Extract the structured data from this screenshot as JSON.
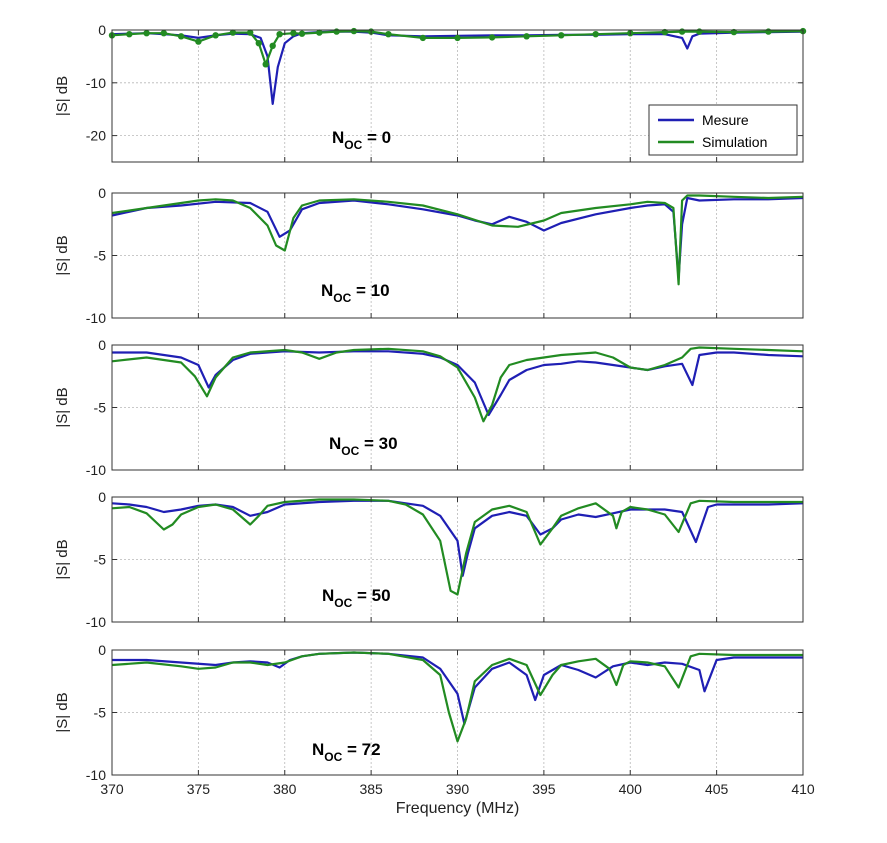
{
  "chart_data": {
    "type": "line",
    "shared_x": {
      "label": "Frequency (MHz)",
      "xlim": [
        370,
        410
      ],
      "ticks": [
        370,
        375,
        380,
        385,
        390,
        395,
        400,
        405,
        410
      ],
      "tick_labels": [
        "370",
        "375",
        "380",
        "385",
        "390",
        "395",
        "400",
        "405",
        "410"
      ]
    },
    "colors": {
      "Mesure": "#1f1fb4",
      "Simulation": "#228b22"
    },
    "grid": true,
    "legend": {
      "placement": "bottom-right of first panel",
      "entries": [
        "Mesure",
        "Simulation"
      ]
    },
    "panels": [
      {
        "annotation_main": "N",
        "annotation_sub": "OC",
        "annotation_value": " = 0",
        "ylabel": "|S| dB",
        "ylim": [
          -25,
          0
        ],
        "yticks": [
          0,
          -10,
          -20
        ],
        "ytick_labels": [
          "0",
          "-10",
          "-20"
        ],
        "series": [
          {
            "name": "Mesure",
            "x": [
              370,
              371,
              372,
              373,
              374,
              375,
              376,
              377,
              378,
              378.6,
              379,
              379.3,
              379.6,
              380,
              380.5,
              381,
              382,
              383,
              384,
              385,
              386,
              388,
              390,
              392,
              394,
              396,
              398,
              400,
              402,
              403,
              403.3,
              403.6,
              404,
              406,
              408,
              410
            ],
            "y": [
              -0.8,
              -0.7,
              -0.6,
              -0.8,
              -1.0,
              -1.5,
              -1.0,
              -0.7,
              -0.8,
              -1.5,
              -5.0,
              -14.0,
              -7.0,
              -2.5,
              -1.2,
              -0.6,
              -0.4,
              -0.3,
              -0.3,
              -0.5,
              -1.0,
              -1.2,
              -1.1,
              -1.0,
              -1.0,
              -0.9,
              -0.9,
              -0.8,
              -0.8,
              -1.5,
              -3.5,
              -1.2,
              -0.7,
              -0.5,
              -0.4,
              -0.3
            ]
          },
          {
            "name": "Simulation",
            "x": [
              370,
              371,
              372,
              373,
              374,
              375,
              376,
              377,
              378,
              378.5,
              378.9,
              379.3,
              379.7,
              380.5,
              381,
              382,
              383,
              384,
              385,
              386,
              388,
              390,
              392,
              394,
              396,
              398,
              400,
              402,
              403,
              404,
              406,
              408,
              410
            ],
            "y": [
              -1.0,
              -0.8,
              -0.6,
              -0.6,
              -1.2,
              -2.2,
              -1.0,
              -0.5,
              -0.5,
              -2.5,
              -6.5,
              -3.0,
              -0.8,
              -0.6,
              -0.7,
              -0.5,
              -0.3,
              -0.2,
              -0.3,
              -0.8,
              -1.5,
              -1.5,
              -1.4,
              -1.2,
              -1.0,
              -0.8,
              -0.6,
              -0.4,
              -0.3,
              -0.3,
              -0.4,
              -0.3,
              -0.2
            ]
          }
        ]
      },
      {
        "annotation_main": "N",
        "annotation_sub": "OC",
        "annotation_value": " = 10",
        "ylabel": "|S| dB",
        "ylim": [
          -10,
          0
        ],
        "yticks": [
          0,
          -5,
          -10
        ],
        "ytick_labels": [
          "0",
          "-5",
          "-10"
        ],
        "series": [
          {
            "name": "Mesure",
            "x": [
              370,
              372,
              374,
              376,
              378,
              379,
              379.7,
              380.3,
              381,
              382,
              384,
              386,
              388,
              390,
              391,
              392,
              393,
              394,
              395,
              396,
              398,
              400,
              401,
              402,
              402.5,
              402.8,
              403,
              403.3,
              404,
              406,
              408,
              410
            ],
            "y": [
              -1.8,
              -1.2,
              -1.0,
              -0.7,
              -0.8,
              -1.5,
              -3.5,
              -3.0,
              -1.3,
              -0.8,
              -0.6,
              -0.9,
              -1.3,
              -1.8,
              -2.2,
              -2.5,
              -1.9,
              -2.3,
              -3.0,
              -2.4,
              -1.7,
              -1.2,
              -1.0,
              -0.9,
              -1.5,
              -6.8,
              -2.5,
              -0.4,
              -0.6,
              -0.5,
              -0.5,
              -0.4
            ]
          },
          {
            "name": "Simulation",
            "x": [
              370,
              372,
              374,
              375,
              376,
              377,
              378,
              379,
              379.5,
              380,
              380.5,
              381,
              382,
              384,
              386,
              388,
              390,
              392,
              393.5,
              395,
              396,
              398,
              400,
              401,
              402,
              402.5,
              402.8,
              403,
              403.3,
              404,
              406,
              408,
              410
            ],
            "y": [
              -1.6,
              -1.2,
              -0.8,
              -0.6,
              -0.5,
              -0.6,
              -1.2,
              -2.6,
              -4.2,
              -4.6,
              -2.0,
              -1.0,
              -0.6,
              -0.5,
              -0.7,
              -1.0,
              -1.7,
              -2.6,
              -2.7,
              -2.2,
              -1.6,
              -1.2,
              -0.9,
              -0.7,
              -0.8,
              -1.2,
              -7.3,
              -0.6,
              -0.2,
              -0.2,
              -0.3,
              -0.4,
              -0.3
            ]
          }
        ]
      },
      {
        "annotation_main": "N",
        "annotation_sub": "OC",
        "annotation_value": " = 30",
        "ylabel": "|S| dB",
        "ylim": [
          -10,
          0
        ],
        "yticks": [
          0,
          -5,
          -10
        ],
        "ytick_labels": [
          "0",
          "-5",
          "-10"
        ],
        "series": [
          {
            "name": "Mesure",
            "x": [
              370,
              372,
              374,
              375,
              375.6,
              376,
              377,
              378,
              380,
              382,
              384,
              386,
              388,
              389,
              390,
              391,
              391.8,
              392.5,
              393,
              394,
              395,
              396,
              397,
              398,
              400,
              401,
              402,
              403,
              403.6,
              404,
              405,
              406,
              408,
              410
            ],
            "y": [
              -0.6,
              -0.6,
              -1.0,
              -1.6,
              -3.4,
              -2.4,
              -1.2,
              -0.7,
              -0.5,
              -0.6,
              -0.5,
              -0.5,
              -0.7,
              -1.0,
              -1.6,
              -3.0,
              -5.6,
              -4.0,
              -2.8,
              -2.0,
              -1.6,
              -1.5,
              -1.3,
              -1.4,
              -1.8,
              -2.0,
              -1.7,
              -1.5,
              -3.2,
              -0.8,
              -0.6,
              -0.6,
              -0.8,
              -0.9
            ]
          },
          {
            "name": "Simulation",
            "x": [
              370,
              372,
              374,
              374.8,
              375.5,
              376,
              377,
              378,
              380,
              381,
              382,
              383,
              384,
              386,
              388,
              389,
              390,
              391,
              391.5,
              392,
              392.5,
              393,
              394,
              396,
              398,
              399,
              400,
              401,
              402,
              403,
              403.5,
              404,
              406,
              408,
              410
            ],
            "y": [
              -1.3,
              -1.0,
              -1.4,
              -2.5,
              -4.1,
              -2.6,
              -1.0,
              -0.6,
              -0.4,
              -0.6,
              -1.1,
              -0.6,
              -0.4,
              -0.3,
              -0.5,
              -0.9,
              -1.8,
              -4.2,
              -6.1,
              -4.8,
              -2.6,
              -1.6,
              -1.2,
              -0.8,
              -0.6,
              -1.0,
              -1.8,
              -2.0,
              -1.6,
              -1.0,
              -0.3,
              -0.2,
              -0.3,
              -0.4,
              -0.5
            ]
          }
        ]
      },
      {
        "annotation_main": "N",
        "annotation_sub": "OC",
        "annotation_value": " = 50",
        "ylabel": "|S| dB",
        "ylim": [
          -10,
          0
        ],
        "yticks": [
          0,
          -5,
          -10
        ],
        "ytick_labels": [
          "0",
          "-5",
          "-10"
        ],
        "series": [
          {
            "name": "Mesure",
            "x": [
              370,
              371,
              372,
              373,
              374,
              375,
              376,
              377,
              378,
              379,
              380,
              382,
              384,
              386,
              388,
              389,
              390,
              390.3,
              390.6,
              391,
              392,
              393,
              394,
              394.8,
              395.5,
              396,
              397,
              398,
              399,
              400,
              401,
              402,
              403,
              403.8,
              404.5,
              405,
              406,
              408,
              410
            ],
            "y": [
              -0.5,
              -0.6,
              -0.8,
              -1.2,
              -1.0,
              -0.7,
              -0.6,
              -0.8,
              -1.5,
              -1.2,
              -0.6,
              -0.4,
              -0.3,
              -0.3,
              -0.7,
              -1.5,
              -3.5,
              -6.3,
              -4.5,
              -2.5,
              -1.5,
              -1.2,
              -1.5,
              -3.0,
              -2.5,
              -1.8,
              -1.4,
              -1.6,
              -1.3,
              -1.0,
              -1.0,
              -1.0,
              -1.2,
              -3.6,
              -0.8,
              -0.6,
              -0.6,
              -0.6,
              -0.5
            ]
          },
          {
            "name": "Simulation",
            "x": [
              370,
              371,
              372,
              373,
              373.5,
              374,
              375,
              376,
              377,
              378,
              378.5,
              379,
              380,
              382,
              384,
              386,
              387,
              388,
              389,
              389.6,
              390,
              390.5,
              391,
              392,
              393,
              394,
              394.8,
              395.5,
              396,
              397,
              398,
              399,
              399.2,
              399.5,
              400,
              401,
              402,
              402.8,
              403.5,
              404,
              406,
              408,
              410
            ],
            "y": [
              -0.9,
              -0.8,
              -1.3,
              -2.6,
              -2.2,
              -1.4,
              -0.8,
              -0.6,
              -1.0,
              -2.2,
              -1.5,
              -0.7,
              -0.4,
              -0.2,
              -0.2,
              -0.3,
              -0.6,
              -1.4,
              -3.5,
              -7.5,
              -7.8,
              -4.5,
              -2.0,
              -1.0,
              -0.7,
              -1.2,
              -3.8,
              -2.5,
              -1.5,
              -0.9,
              -0.5,
              -1.5,
              -2.5,
              -1.2,
              -0.8,
              -1.0,
              -1.4,
              -2.8,
              -0.5,
              -0.3,
              -0.4,
              -0.4,
              -0.4
            ]
          }
        ]
      },
      {
        "annotation_main": "N",
        "annotation_sub": "OC",
        "annotation_value": " = 72",
        "ylabel": "|S| dB",
        "ylim": [
          -10,
          0
        ],
        "yticks": [
          0,
          -5,
          -10
        ],
        "ytick_labels": [
          "0",
          "-5",
          "-10"
        ],
        "series": [
          {
            "name": "Mesure",
            "x": [
              370,
              372,
              374,
              376,
              377,
              378,
              379,
              379.7,
              380.3,
              381,
              382,
              384,
              386,
              388,
              389,
              390,
              390.4,
              391,
              392,
              393,
              394,
              394.5,
              395,
              396,
              397,
              398,
              399,
              400,
              401,
              402,
              403,
              404,
              404.3,
              405,
              406,
              408,
              410
            ],
            "y": [
              -0.8,
              -0.8,
              -1.0,
              -1.2,
              -1.0,
              -0.9,
              -1.0,
              -1.4,
              -0.8,
              -0.5,
              -0.3,
              -0.2,
              -0.3,
              -0.6,
              -1.5,
              -3.5,
              -5.9,
              -3.0,
              -1.5,
              -1.0,
              -2.0,
              -4.0,
              -2.0,
              -1.2,
              -1.6,
              -2.2,
              -1.3,
              -1.0,
              -1.2,
              -1.0,
              -1.1,
              -1.6,
              -3.3,
              -0.8,
              -0.6,
              -0.6,
              -0.6
            ]
          },
          {
            "name": "Simulation",
            "x": [
              370,
              372,
              374,
              375,
              376,
              377,
              378,
              379,
              380,
              381,
              382,
              384,
              386,
              388,
              389,
              389.5,
              390,
              390.5,
              391,
              392,
              393,
              394,
              394.8,
              395.5,
              396,
              397,
              398,
              398.8,
              399.2,
              399.6,
              400,
              401,
              402,
              402.8,
              403.5,
              404,
              406,
              408,
              410
            ],
            "y": [
              -1.2,
              -1.0,
              -1.3,
              -1.5,
              -1.4,
              -1.0,
              -1.0,
              -1.2,
              -1.0,
              -0.5,
              -0.3,
              -0.2,
              -0.3,
              -0.8,
              -2.0,
              -5.0,
              -7.3,
              -5.5,
              -2.5,
              -1.2,
              -0.7,
              -1.2,
              -3.6,
              -2.0,
              -1.2,
              -0.9,
              -0.7,
              -1.5,
              -2.8,
              -1.2,
              -0.9,
              -1.0,
              -1.3,
              -3.0,
              -0.5,
              -0.3,
              -0.4,
              -0.4,
              -0.4
            ]
          }
        ]
      }
    ]
  }
}
